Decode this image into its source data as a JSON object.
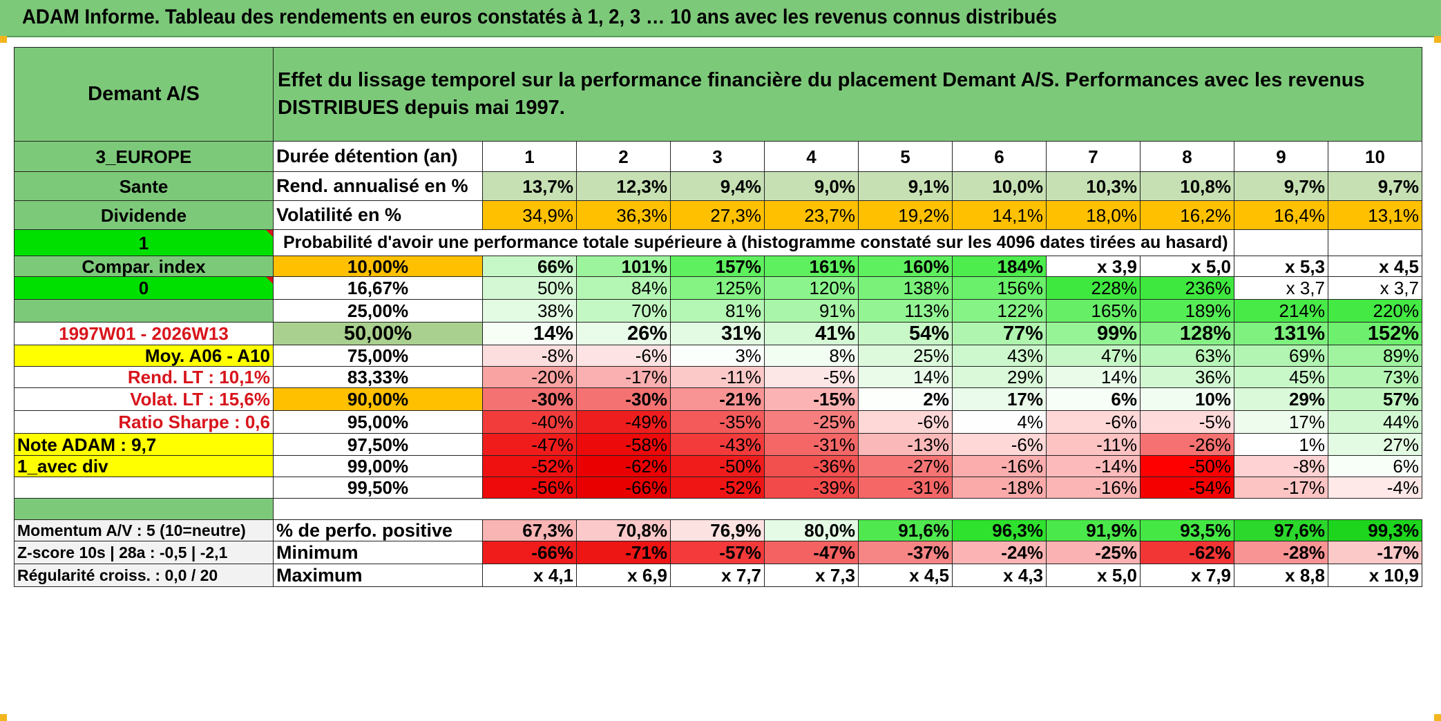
{
  "title": "ADAM Informe. Tableau des rendements en euros constatés à 1, 2, 3 … 10 ans avec les revenus connus distribués",
  "colors": {
    "green_head": "#7dc97a",
    "bright_green": "#00e000",
    "yellow": "#ffff00",
    "orange": "#ffc000",
    "red_text": "#d8141b"
  },
  "fund": "Demant A/S",
  "header_text": "Effet du lissage temporel sur la performance financière du placement Demant A/S. Performances avec les revenus DISTRIBUES depuis mai 1997.",
  "left": {
    "region": "3_EUROPE",
    "sector": "Sante",
    "type": "Dividende",
    "one": "1",
    "compar": "Compar. index",
    "zero": "0",
    "period": "1997W01 - 2026W13",
    "moy": "Moy. A06 - A10",
    "rend_lt": "Rend. LT :   10,1%",
    "volat_lt": "Volat. LT :   15,6%",
    "sharpe": "Ratio Sharpe :    0,6",
    "note": "Note ADAM : 9,7",
    "avec_div": "1_avec div",
    "momentum": "Momentum A/V : 5 (10=neutre)",
    "zscore": "Z-score 10s | 28a : -0,5 | -2,1",
    "regularite": "Régularité croiss. : 0,0 / 20"
  },
  "row_labels": {
    "duree": "Durée détention (an)",
    "rend": "Rend. annualisé en %",
    "vol": "Volatilité en %",
    "proba": "Probabilité d'avoir une performance totale supérieure à (histogramme constaté sur les 4096 dates tirées au hasard)",
    "pos": "% de perfo. positive",
    "min": "Minimum",
    "max": "Maximum"
  },
  "years": [
    "1",
    "2",
    "3",
    "4",
    "5",
    "6",
    "7",
    "8",
    "9",
    "10"
  ],
  "rend": [
    "13,7%",
    "12,3%",
    "9,4%",
    "9,0%",
    "9,1%",
    "10,0%",
    "10,3%",
    "10,8%",
    "9,7%",
    "9,7%"
  ],
  "vol": [
    "34,9%",
    "36,3%",
    "27,3%",
    "23,7%",
    "19,2%",
    "14,1%",
    "18,0%",
    "16,2%",
    "16,4%",
    "13,1%"
  ],
  "proba": [
    {
      "p": "10,00%",
      "v": [
        "66%",
        "101%",
        "157%",
        "161%",
        "160%",
        "184%",
        "x 3,9",
        "x 5,0",
        "x 5,3",
        "x 4,5"
      ]
    },
    {
      "p": "16,67%",
      "v": [
        "50%",
        "84%",
        "125%",
        "120%",
        "138%",
        "156%",
        "228%",
        "236%",
        "x 3,7",
        "x 3,7"
      ]
    },
    {
      "p": "25,00%",
      "v": [
        "38%",
        "70%",
        "81%",
        "91%",
        "113%",
        "122%",
        "165%",
        "189%",
        "214%",
        "220%"
      ]
    },
    {
      "p": "50,00%",
      "v": [
        "14%",
        "26%",
        "31%",
        "41%",
        "54%",
        "77%",
        "99%",
        "128%",
        "131%",
        "152%"
      ]
    },
    {
      "p": "75,00%",
      "v": [
        "-8%",
        "-6%",
        "3%",
        "8%",
        "25%",
        "43%",
        "47%",
        "63%",
        "69%",
        "89%"
      ]
    },
    {
      "p": "83,33%",
      "v": [
        "-20%",
        "-17%",
        "-11%",
        "-5%",
        "14%",
        "29%",
        "14%",
        "36%",
        "45%",
        "73%"
      ]
    },
    {
      "p": "90,00%",
      "v": [
        "-30%",
        "-30%",
        "-21%",
        "-15%",
        "2%",
        "17%",
        "6%",
        "10%",
        "29%",
        "57%"
      ]
    },
    {
      "p": "95,00%",
      "v": [
        "-40%",
        "-49%",
        "-35%",
        "-25%",
        "-6%",
        "4%",
        "-6%",
        "-5%",
        "17%",
        "44%"
      ]
    },
    {
      "p": "97,50%",
      "v": [
        "-47%",
        "-58%",
        "-43%",
        "-31%",
        "-13%",
        "-6%",
        "-11%",
        "-26%",
        "1%",
        "27%"
      ]
    },
    {
      "p": "99,00%",
      "v": [
        "-52%",
        "-62%",
        "-50%",
        "-36%",
        "-27%",
        "-16%",
        "-14%",
        "-50%",
        "-8%",
        "6%"
      ]
    },
    {
      "p": "99,50%",
      "v": [
        "-56%",
        "-66%",
        "-52%",
        "-39%",
        "-31%",
        "-18%",
        "-16%",
        "-54%",
        "-17%",
        "-4%"
      ]
    }
  ],
  "pos": [
    "67,3%",
    "70,8%",
    "76,9%",
    "80,0%",
    "91,6%",
    "96,3%",
    "91,9%",
    "93,5%",
    "97,6%",
    "99,3%"
  ],
  "min": [
    "-66%",
    "-71%",
    "-57%",
    "-47%",
    "-37%",
    "-24%",
    "-25%",
    "-62%",
    "-28%",
    "-17%"
  ],
  "max": [
    "x 4,1",
    "x 6,9",
    "x 7,7",
    "x 7,3",
    "x 4,5",
    "x 4,3",
    "x 5,0",
    "x 7,9",
    "x 8,8",
    "x 10,9"
  ]
}
